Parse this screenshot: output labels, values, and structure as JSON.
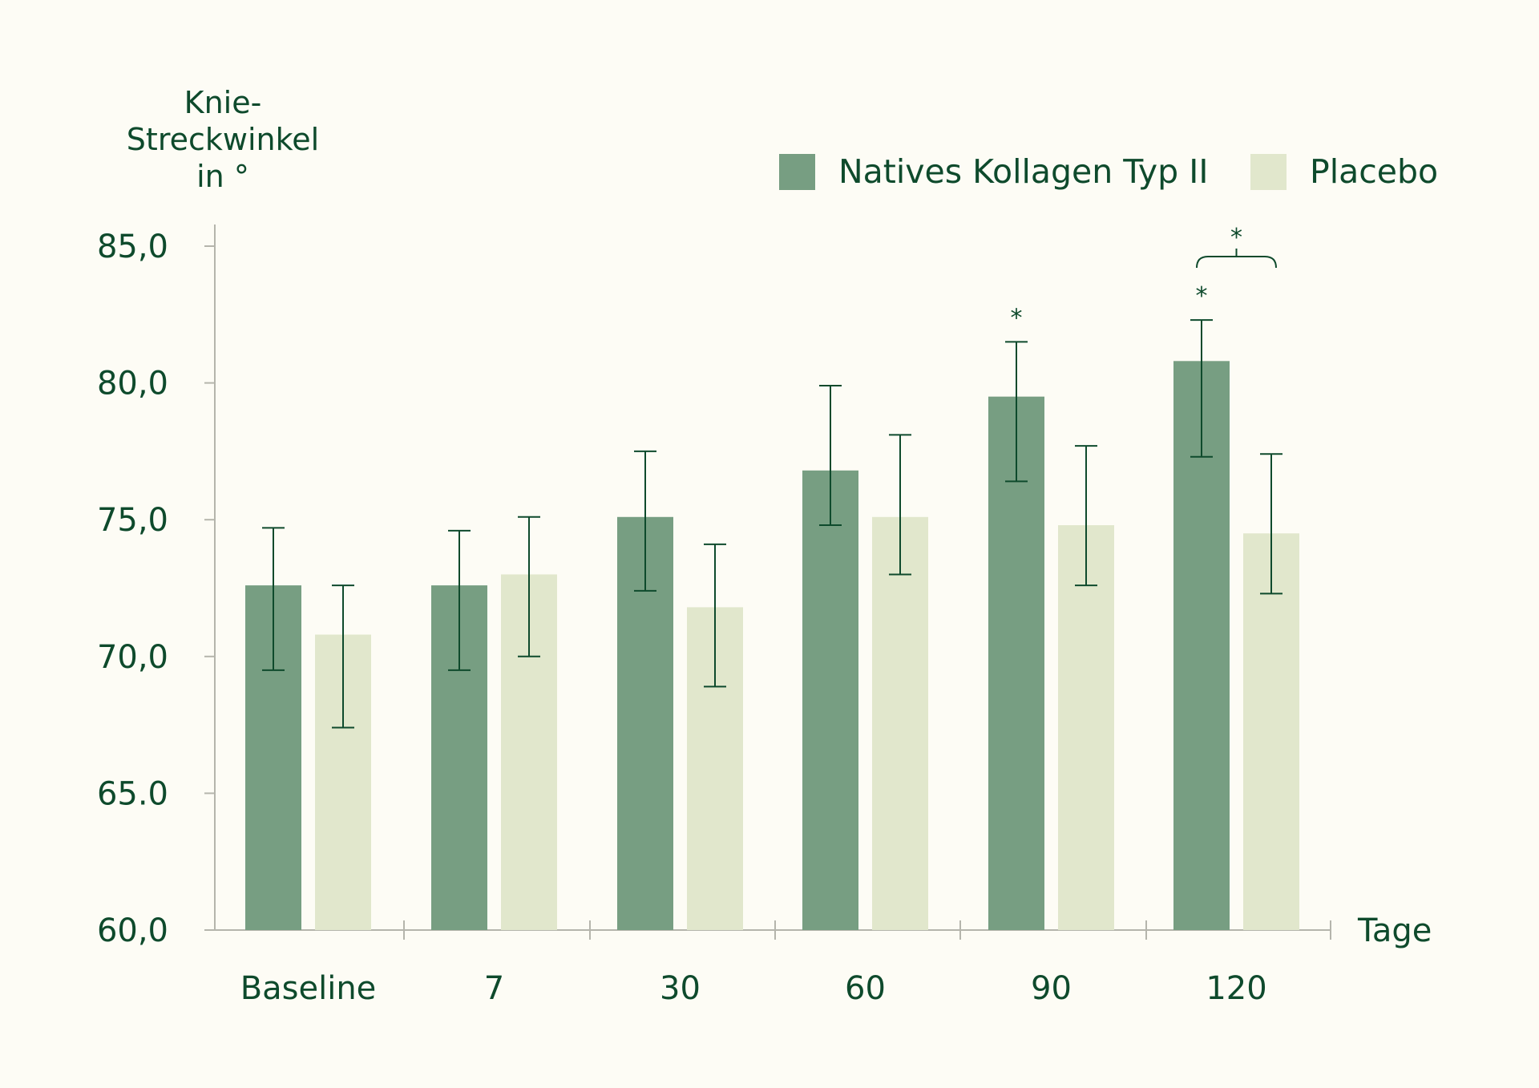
{
  "colors": {
    "background": "#fdfcf5",
    "text": "#0e4a2c",
    "axis": "#b5b5ac",
    "error_bar": "#0e4a2c"
  },
  "chart_data": {
    "type": "bar",
    "ylabel_lines": [
      "Knie-",
      "Streckwinkel",
      "in °"
    ],
    "xlabel": "Tage",
    "ylim": [
      60,
      85
    ],
    "yticks": [
      {
        "value": 85,
        "label": "85,0"
      },
      {
        "value": 80,
        "label": "80,0"
      },
      {
        "value": 75,
        "label": "75,0"
      },
      {
        "value": 70,
        "label": "70,0"
      },
      {
        "value": 65,
        "label": "65.0"
      },
      {
        "value": 60,
        "label": "60,0"
      }
    ],
    "categories": [
      "Baseline",
      "7",
      "30",
      "60",
      "90",
      "120"
    ],
    "legend_position": "top-right",
    "grid": false,
    "series": [
      {
        "name": "Natives Kollagen Typ II",
        "color": "#779e82",
        "values": [
          72.6,
          72.6,
          75.1,
          76.8,
          79.5,
          80.8
        ],
        "error_low": [
          69.5,
          69.5,
          72.4,
          74.8,
          76.4,
          77.3
        ],
        "error_high": [
          74.7,
          74.6,
          77.5,
          79.9,
          81.5,
          82.3
        ]
      },
      {
        "name": "Placebo",
        "color": "#e1e7cc",
        "values": [
          70.8,
          73.0,
          71.8,
          75.1,
          74.8,
          74.5
        ],
        "error_low": [
          67.4,
          70.0,
          68.9,
          73.0,
          72.6,
          72.3
        ],
        "error_high": [
          72.6,
          75.1,
          74.1,
          78.1,
          77.7,
          77.4
        ]
      }
    ],
    "annotations": [
      {
        "text": "*",
        "category": "90",
        "series": 0,
        "kind": "significance"
      },
      {
        "text": "*",
        "category": "120",
        "series": 0,
        "kind": "significance"
      },
      {
        "text": "*",
        "category": "120",
        "kind": "bracket-between-series"
      }
    ]
  }
}
